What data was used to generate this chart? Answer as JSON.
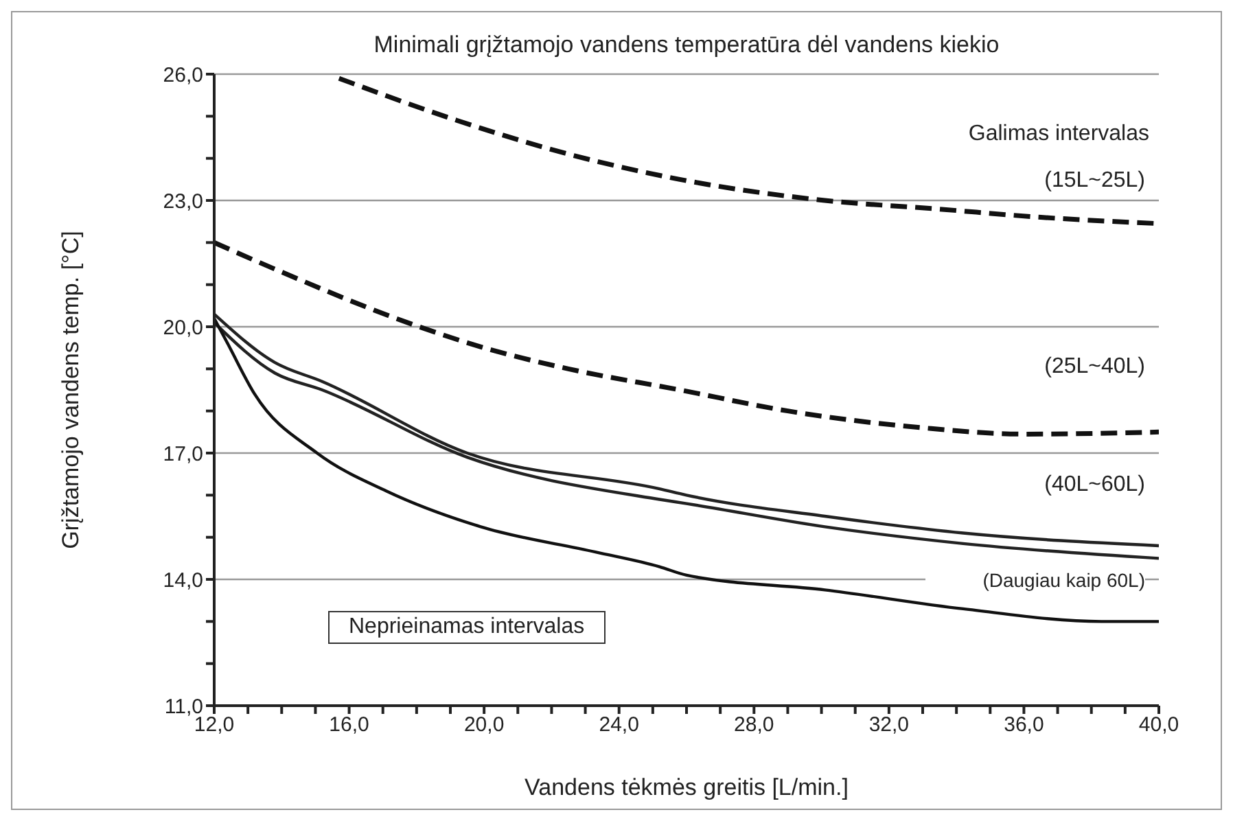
{
  "chart_data": {
    "type": "line",
    "title": "Minimali grįžtamojo vandens temperatūra dėl vandens kiekio",
    "xlabel": "Vandens tėkmės greitis [L/min.]",
    "ylabel": "Grįžtamojo vandens temp. [°C]",
    "annotations": [
      "Galimas intervalas",
      "Neprieinamas intervalas"
    ],
    "xlim": [
      12,
      40
    ],
    "xticks": [
      {
        "value": 12,
        "label": "12,0"
      },
      {
        "value": 13,
        "label": null
      },
      {
        "value": 14,
        "label": null
      },
      {
        "value": 15,
        "label": null
      },
      {
        "value": 16,
        "label": "16,0"
      },
      {
        "value": 17,
        "label": null
      },
      {
        "value": 18,
        "label": null
      },
      {
        "value": 19,
        "label": null
      },
      {
        "value": 20,
        "label": "20,0"
      },
      {
        "value": 21,
        "label": null
      },
      {
        "value": 22,
        "label": null
      },
      {
        "value": 23,
        "label": null
      },
      {
        "value": 24,
        "label": "24,0"
      },
      {
        "value": 25,
        "label": null
      },
      {
        "value": 26,
        "label": null
      },
      {
        "value": 27,
        "label": null
      },
      {
        "value": 28,
        "label": "28,0"
      },
      {
        "value": 29,
        "label": null
      },
      {
        "value": 30,
        "label": null
      },
      {
        "value": 31,
        "label": null
      },
      {
        "value": 32,
        "label": "32,0"
      },
      {
        "value": 33,
        "label": null
      },
      {
        "value": 34,
        "label": null
      },
      {
        "value": 35,
        "label": null
      },
      {
        "value": 36,
        "label": "36,0"
      },
      {
        "value": 37,
        "label": null
      },
      {
        "value": 38,
        "label": null
      },
      {
        "value": 39,
        "label": null
      },
      {
        "value": 40,
        "label": "40,0"
      }
    ],
    "ylim": [
      11,
      26
    ],
    "yticks": [
      {
        "value": 11,
        "label": "11,0"
      },
      {
        "value": 12,
        "label": null
      },
      {
        "value": 13,
        "label": null
      },
      {
        "value": 14,
        "label": "14,0"
      },
      {
        "value": 15,
        "label": null
      },
      {
        "value": 16,
        "label": null
      },
      {
        "value": 17,
        "label": "17,0"
      },
      {
        "value": 18,
        "label": null
      },
      {
        "value": 19,
        "label": null
      },
      {
        "value": 20,
        "label": "20,0"
      },
      {
        "value": 21,
        "label": null
      },
      {
        "value": 22,
        "label": null
      },
      {
        "value": 23,
        "label": "23,0"
      },
      {
        "value": 24,
        "label": null
      },
      {
        "value": 25,
        "label": null
      },
      {
        "value": 26,
        "label": "26,0"
      }
    ],
    "grid": "y",
    "legend": false,
    "marker": "none",
    "series": [
      {
        "name": "(15L~25L)",
        "color": "#111111",
        "line_style": "dashed",
        "x": [
          15.7,
          19.2,
          22.5,
          25.8,
          30.1,
          33.4,
          36.5,
          40
        ],
        "values": [
          25.9,
          24.9,
          24.1,
          23.5,
          23.0,
          22.8,
          22.6,
          22.45
        ]
      },
      {
        "name": "(25L~40L)",
        "color": "#111111",
        "line_style": "dashed",
        "x": [
          12,
          14,
          17.9,
          20,
          22.5,
          25.8,
          29,
          33,
          36,
          40
        ],
        "values": [
          22.0,
          21.3,
          20.05,
          19.5,
          19.0,
          18.5,
          18.0,
          17.6,
          17.45,
          17.5
        ]
      },
      {
        "name": "(40L~60L)",
        "color": "#222222",
        "line_style": "solid",
        "x": [
          12,
          13.8,
          15.2,
          19.5,
          25.2,
          26,
          30.1,
          34.2,
          40
        ],
        "values": [
          20.3,
          19.15,
          18.7,
          17.0,
          16.15,
          16.0,
          15.5,
          15.1,
          14.8
        ]
      },
      {
        "color": "#222222",
        "line_style": "solid",
        "x": [
          12,
          13.8,
          15.2,
          19.5,
          25.2,
          26,
          30.1,
          34.2,
          40
        ],
        "values": [
          20.1,
          18.9,
          18.5,
          16.9,
          15.9,
          15.8,
          15.25,
          14.85,
          14.5
        ]
      },
      {
        "name": "(Daugiau kaip 60L)",
        "color": "#111111",
        "line_style": "solid",
        "x": [
          12,
          12.4,
          13.2,
          15.05,
          17.1,
          19.9,
          23.3,
          25.2,
          26,
          30.1,
          34.2,
          38.3,
          40
        ],
        "values": [
          20.2,
          19.6,
          18.4,
          17.0,
          16.1,
          15.25,
          14.65,
          14.3,
          14.1,
          13.75,
          13.3,
          13.0,
          13.0
        ]
      }
    ]
  }
}
